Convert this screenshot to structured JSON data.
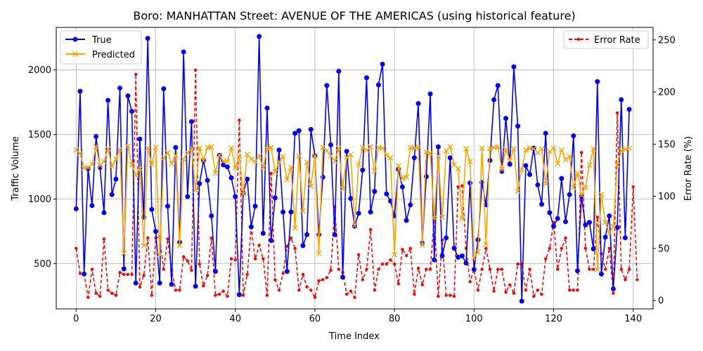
{
  "chart_data": {
    "type": "line",
    "title": "Boro: MANHATTAN Street: AVENUE OF THE AMERICAS (using historical feature)",
    "xlabel": "Time Index",
    "ylabel": "Traffic Volume",
    "y2label": "Error Rate (%)",
    "xlim": [
      -5,
      145
    ],
    "ylim": [
      150,
      2330
    ],
    "y2lim": [
      -8,
      262
    ],
    "xticks": [
      0,
      20,
      40,
      60,
      80,
      100,
      120,
      140
    ],
    "yticks": [
      500,
      1000,
      1500,
      2000
    ],
    "y2ticks": [
      0,
      50,
      100,
      150,
      200,
      250
    ],
    "grid": true,
    "legend_left": "upper-left",
    "legend_right": "upper-right",
    "series": [
      {
        "name": "True",
        "color": "#0000ff",
        "marker": "circle",
        "axis": "left",
        "values": [
          925,
          1835,
          420,
          1235,
          950,
          1485,
          1245,
          895,
          1765,
          1035,
          1155,
          1860,
          460,
          1800,
          1680,
          350,
          1465,
          860,
          2245,
          920,
          750,
          350,
          1855,
          945,
          340,
          1400,
          665,
          2140,
          1020,
          1600,
          325,
          1120,
          1300,
          1145,
          870,
          440,
          1340,
          1265,
          1250,
          1165,
          1020,
          260,
          1050,
          1155,
          785,
          945,
          2260,
          735,
          1705,
          680,
          1010,
          1380,
          900,
          440,
          900,
          1510,
          1530,
          640,
          725,
          1540,
          1335,
          725,
          1170,
          1880,
          1420,
          725,
          1990,
          395,
          1370,
          1005,
          790,
          890,
          1225,
          1940,
          900,
          1060,
          1885,
          2045,
          1040,
          985,
          870,
          1230,
          1095,
          835,
          955,
          1320,
          1740,
          660,
          1175,
          1815,
          530,
          1405,
          560,
          700,
          1320,
          620,
          550,
          560,
          505,
          1125,
          455,
          685,
          1130,
          955,
          1300,
          1770,
          1880,
          1215,
          1625,
          1270,
          2025,
          1565,
          210,
          1260,
          1190,
          1395,
          1110,
          960,
          1510,
          895,
          790,
          850,
          1160,
          825,
          1035,
          1490,
          445,
          1020,
          800,
          820,
          615,
          1910,
          420,
          705,
          870,
          305,
          780,
          1770,
          700,
          1695
        ]
      },
      {
        "name": "Predicted",
        "color": "#ffa500",
        "marker": "x",
        "axis": "left",
        "values": [
          1380,
          1355,
          1240,
          1245,
          1270,
          1405,
          1260,
          1290,
          1390,
          1255,
          1310,
          1385,
          580,
          1410,
          1265,
          1185,
          1235,
          640,
          1395,
          1270,
          1400,
          570,
          1320,
          1360,
          1275,
          1340,
          640,
          1310,
          1360,
          1390,
          1070,
          1395,
          1300,
          1400,
          1405,
          1200,
          1340,
          1295,
          1290,
          1395,
          1240,
          1330,
          1040,
          1345,
          1310,
          1290,
          1335,
          1245,
          1390,
          1400,
          1210,
          1285,
          1330,
          1150,
          1245,
          775,
          1335,
          910,
          1285,
          1100,
          1335,
          580,
          1400,
          1375,
          1335,
          1295,
          1395,
          1080,
          1325,
          1345,
          795,
          1270,
          1400,
          1380,
          1405,
          1215,
          1400,
          1395,
          1340,
          1320,
          570,
          1260,
          1160,
          1170,
          1400,
          1395,
          1405,
          645,
          1365,
          1355,
          855,
          1335,
          860,
          1375,
          1405,
          1265,
          1235,
          850,
          1390,
          1290,
          545,
          590,
          1395,
          650,
          1390,
          1400,
          1405,
          1230,
          1385,
          1300,
          1390,
          1060,
          1230,
          1380,
          1395,
          1390,
          1360,
          1390,
          1120,
          1370,
          1395,
          1275,
          1380,
          1305,
          1330,
          1090,
          1200,
          1030,
          1090,
          1265,
          1390,
          455,
          1035,
          820,
          735,
          790,
          1265,
          1375,
          1385,
          1395
        ]
      },
      {
        "name": "Error Rate",
        "color": "#ff0000",
        "marker": "point",
        "axis": "right",
        "values": [
          50,
          26,
          25,
          3,
          30,
          7,
          4,
          59,
          10,
          7,
          5,
          27,
          25,
          25,
          25,
          217,
          13,
          24,
          60,
          5,
          60,
          61,
          30,
          59,
          29,
          10,
          10,
          42,
          38,
          29,
          221,
          35,
          14,
          24,
          60,
          5,
          6,
          9,
          4,
          40,
          39,
          173,
          5,
          25,
          70,
          40,
          53,
          40,
          5,
          122,
          20,
          10,
          26,
          52,
          60,
          50,
          10,
          25,
          13,
          10,
          3,
          19,
          20,
          22,
          29,
          90,
          30,
          27,
          6,
          9,
          3,
          44,
          20,
          30,
          68,
          10,
          30,
          35,
          35,
          39,
          35,
          16,
          49,
          43,
          50,
          6,
          31,
          15,
          30,
          30,
          80,
          4,
          58,
          5,
          5,
          4,
          109,
          110,
          50,
          18,
          30,
          10,
          30,
          50,
          30,
          9,
          30,
          30,
          8,
          15,
          7,
          35,
          35,
          10,
          30,
          4,
          10,
          6,
          40,
          50,
          75,
          30,
          50,
          60,
          10,
          10,
          10,
          142,
          50,
          30,
          30,
          80,
          45,
          30,
          50,
          7,
          180,
          30,
          20,
          30,
          109,
          20
        ]
      }
    ]
  }
}
